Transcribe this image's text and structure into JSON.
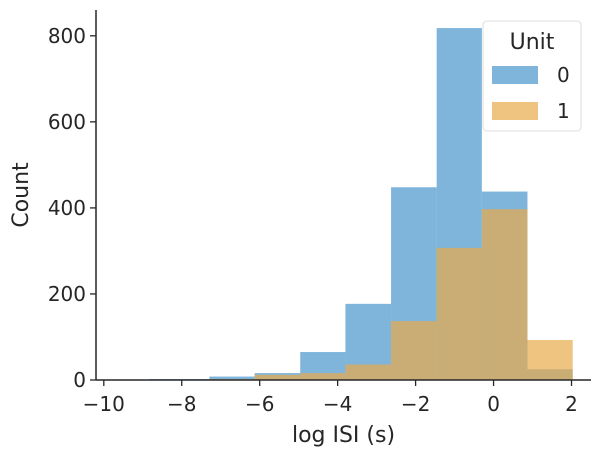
{
  "chart_data": {
    "type": "bar",
    "histogram": true,
    "xlabel": "log ISI (s)",
    "ylabel": "Count",
    "xlim": [
      -10.2,
      2.5
    ],
    "ylim": [
      0,
      860
    ],
    "xticks": [
      -10,
      -8,
      -6,
      -4,
      -2,
      0,
      2
    ],
    "xtick_labels": [
      "−10",
      "−8",
      "−6",
      "−4",
      "−2",
      "0",
      "2"
    ],
    "yticks": [
      0,
      200,
      400,
      600,
      800
    ],
    "ytick_labels": [
      "0",
      "200",
      "400",
      "600",
      "800"
    ],
    "grid": false,
    "legend": {
      "title": "Unit",
      "placement": "top-right"
    },
    "bin_edges": [
      -10.0,
      -8.84,
      -7.29,
      -6.13,
      -4.96,
      -3.8,
      -2.63,
      -1.46,
      -0.3,
      0.87,
      2.03
    ],
    "series": [
      {
        "name": "0",
        "color": "#3a8ec6",
        "opacity": 0.65,
        "values": [
          1,
          2,
          8,
          16,
          65,
          177,
          448,
          818,
          438,
          25
        ]
      },
      {
        "name": "1",
        "color": "#e8a94a",
        "opacity": 0.7,
        "values": [
          0,
          1,
          2,
          12,
          16,
          36,
          137,
          307,
          397,
          93
        ]
      }
    ]
  }
}
